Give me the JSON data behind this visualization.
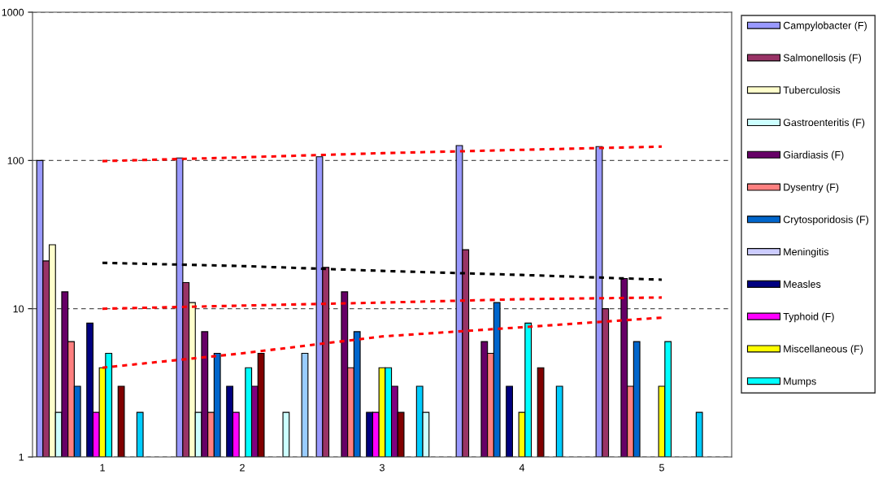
{
  "chart_data": {
    "type": "bar",
    "categories": [
      "1",
      "2",
      "3",
      "4",
      "5"
    ],
    "log": true,
    "ylim": [
      1,
      1000
    ],
    "yticks": [
      1,
      10,
      100,
      1000
    ],
    "grid": "y",
    "legend": "right",
    "series": [
      {
        "name": "Campylobacter (F)",
        "color": "#9999ff",
        "values": [
          100,
          104,
          106,
          126,
          124
        ]
      },
      {
        "name": "Salmonellosis (F)",
        "color": "#993366",
        "values": [
          21,
          15,
          19,
          25,
          10
        ]
      },
      {
        "name": "Tuberculosis",
        "color": "#ffffcc",
        "values": [
          27,
          11,
          null,
          null,
          null
        ]
      },
      {
        "name": "Gastroenteritis (F)",
        "color": "#ccffff",
        "values": [
          2,
          2,
          null,
          null,
          null
        ]
      },
      {
        "name": "Giardiasis (F)",
        "color": "#660066",
        "values": [
          13,
          7,
          13,
          6,
          16
        ]
      },
      {
        "name": "Dysentry (F)",
        "color": "#ff8080",
        "values": [
          6,
          2,
          4,
          5,
          3
        ]
      },
      {
        "name": "Crytosporidosis (F)",
        "color": "#0066cc",
        "values": [
          3,
          5,
          7,
          11,
          6
        ]
      },
      {
        "name": "Meningitis",
        "color": "#ccccff",
        "values": [
          null,
          null,
          null,
          null,
          null
        ]
      },
      {
        "name": "Measles",
        "color": "#000080",
        "values": [
          8,
          3,
          2,
          3,
          null
        ]
      },
      {
        "name": "Typhoid (F)",
        "color": "#ff00ff",
        "values": [
          2,
          2,
          2,
          null,
          null
        ]
      },
      {
        "name": "Miscellaneous (F)",
        "color": "#ffff00",
        "values": [
          4,
          null,
          4,
          2,
          3
        ]
      },
      {
        "name": "Mumps",
        "color": "#00ffff",
        "values": [
          5,
          4,
          4,
          8,
          6
        ]
      },
      {
        "color": "#800080",
        "values": [
          null,
          3,
          3,
          null,
          null
        ]
      },
      {
        "color": "#800000",
        "values": [
          3,
          5,
          2,
          4,
          null
        ]
      },
      {
        "values": [
          null,
          null,
          null,
          null,
          null
        ]
      },
      {
        "values": [
          null,
          null,
          null,
          null,
          null
        ]
      },
      {
        "color": "#00ccff",
        "values": [
          2,
          null,
          3,
          3,
          2
        ]
      },
      {
        "color": "#ccffff",
        "values": [
          null,
          2,
          2,
          null,
          null
        ]
      },
      {
        "values": [
          null,
          null,
          null,
          null,
          null
        ]
      },
      {
        "values": [
          null,
          null,
          null,
          null,
          null
        ]
      },
      {
        "color": "#99ccff",
        "values": [
          null,
          5,
          null,
          null,
          null
        ]
      },
      {
        "type": "line",
        "line_style": "dotted",
        "color": "#ff0000",
        "values": [
          99,
          105,
          112,
          118,
          124
        ]
      },
      {
        "type": "line",
        "line_style": "dotted",
        "color": "#000000",
        "values": [
          20.4,
          19.4,
          18.0,
          16.9,
          15.7
        ]
      },
      {
        "type": "line",
        "line_style": "dotted",
        "color": "#ff0000",
        "values": [
          10,
          10.5,
          11.0,
          11.6,
          11.9
        ]
      },
      {
        "type": "line",
        "line_style": "dotted",
        "color": "#ff0000",
        "values": [
          4,
          5.0,
          6.5,
          7.5,
          8.7
        ]
      }
    ]
  }
}
